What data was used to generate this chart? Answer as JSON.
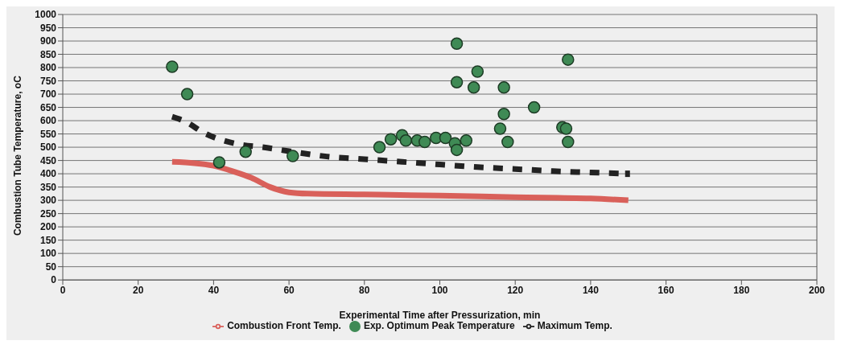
{
  "chart_data": {
    "type": "line",
    "xlabel": "Experimental Time after Pressurization, min",
    "ylabel": "Combustion Tube Temperature, oC",
    "xlim": [
      0,
      200
    ],
    "xticks": [
      0,
      20,
      40,
      60,
      80,
      100,
      120,
      140,
      160,
      180,
      200
    ],
    "ylim": [
      0,
      1000
    ],
    "yticks": [
      0,
      50,
      100,
      150,
      200,
      250,
      300,
      350,
      400,
      450,
      500,
      550,
      600,
      650,
      700,
      750,
      800,
      850,
      900,
      950,
      1000
    ],
    "grid": "y",
    "legend": "bottom",
    "series": [
      {
        "name": "Combustion Front Temp.",
        "color": "#d9605a",
        "line_style": "solid",
        "marker": "none",
        "x": [
          29,
          35,
          40,
          45,
          50,
          55,
          60,
          65,
          80,
          100,
          120,
          140,
          150
        ],
        "values": [
          445,
          440,
          430,
          410,
          385,
          350,
          330,
          325,
          322,
          318,
          312,
          307,
          300
        ]
      },
      {
        "name": "Maximum Temp.",
        "color": "#222222",
        "line_style": "dashed",
        "marker": "none",
        "x": [
          29,
          32,
          38,
          47,
          53,
          60,
          70,
          80,
          90,
          100,
          110,
          120,
          130,
          140,
          150
        ],
        "values": [
          615,
          600,
          550,
          510,
          500,
          485,
          465,
          455,
          445,
          435,
          425,
          418,
          410,
          405,
          400
        ]
      },
      {
        "name": "Exp. Optimum Peak Temperature",
        "type": "scatter",
        "color": "#3f8a55",
        "marker": "circle",
        "x": [
          29,
          33,
          41.5,
          48.5,
          61,
          84,
          87,
          90,
          91,
          94,
          96,
          99,
          101.5,
          104,
          104.5,
          107,
          104.5,
          104.5,
          110,
          109,
          117,
          117,
          116,
          118,
          125,
          132.5,
          133.5,
          134,
          134
        ],
        "values": [
          803,
          700,
          443,
          483,
          467,
          500,
          530,
          545,
          525,
          525,
          520,
          535,
          535,
          515,
          490,
          525,
          890,
          745,
          785,
          725,
          725,
          625,
          570,
          520,
          650,
          575,
          570,
          520,
          830
        ]
      }
    ]
  }
}
